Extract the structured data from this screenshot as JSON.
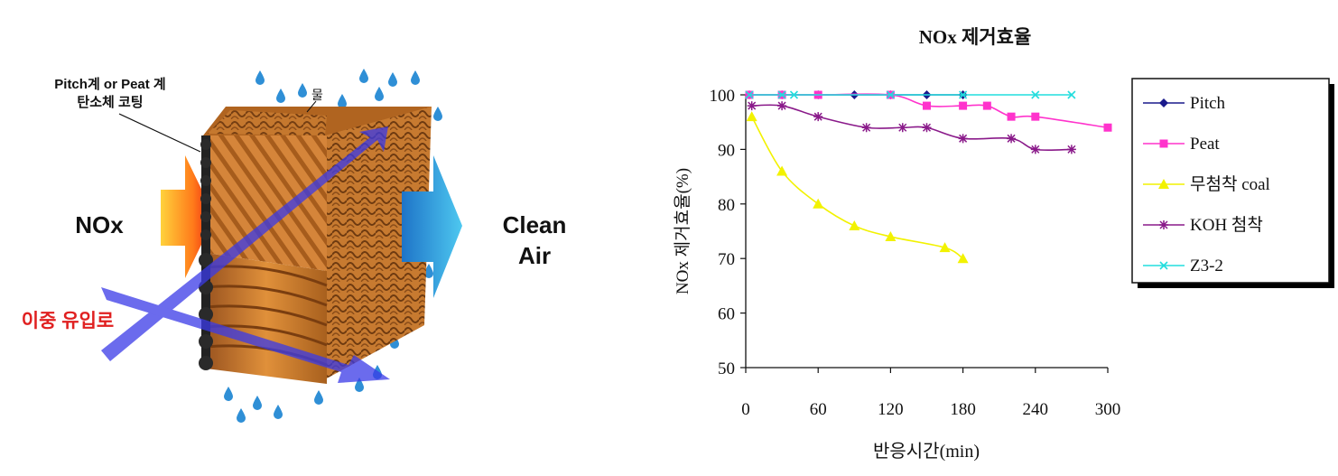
{
  "illustration": {
    "coating_label_line1": "Pitch계 or Peat 계",
    "coating_label_line2": "탄소체 코팅",
    "water_label": "물",
    "inlet_label": "NOx",
    "outlet_label_line1": "Clean",
    "outlet_label_line2": "Air",
    "dual_inlet_label": "이중 유입로",
    "colors": {
      "inlet_arrow": "#f07020",
      "outlet_arrow": "#2a98d8",
      "flow_arrow": "#3a3ae8",
      "media": "#c8782e",
      "droplet": "#2f8fd6",
      "dual_inlet_text": "#e02020"
    }
  },
  "chart_data": {
    "type": "line",
    "title": "NOx 제거효율",
    "xlabel": "반응시간(min)",
    "ylabel": "NOx 제거효율(%)",
    "xlim": [
      0,
      300
    ],
    "ylim": [
      50,
      100
    ],
    "xticks": [
      "0",
      "60",
      "120",
      "180",
      "240",
      "300"
    ],
    "yticks": [
      "50",
      "60",
      "70",
      "80",
      "90",
      "100"
    ],
    "grid": false,
    "legend_position": "right",
    "series": [
      {
        "name": "Pitch",
        "color": "#1a1a8c",
        "marker": "diamond",
        "x": [
          3,
          30,
          60,
          90,
          120,
          150,
          180
        ],
        "y": [
          100,
          100,
          100,
          100,
          100,
          100,
          100
        ]
      },
      {
        "name": "Peat",
        "color": "#ff33cc",
        "marker": "square",
        "x": [
          3,
          30,
          60,
          120,
          150,
          180,
          200,
          220,
          240,
          300
        ],
        "y": [
          100,
          100,
          100,
          100,
          98,
          98,
          98,
          96,
          96,
          94
        ]
      },
      {
        "name": "무첨착 coal",
        "color": "#f2f200",
        "marker": "triangle",
        "x": [
          5,
          30,
          60,
          90,
          120,
          165,
          180
        ],
        "y": [
          96,
          86,
          80,
          76,
          74,
          72,
          70
        ]
      },
      {
        "name": "KOH 첨착",
        "color": "#8a1a8a",
        "marker": "asterisk",
        "x": [
          5,
          30,
          60,
          100,
          130,
          150,
          180,
          220,
          240,
          270
        ],
        "y": [
          98,
          98,
          96,
          94,
          94,
          94,
          92,
          92,
          90,
          90
        ]
      },
      {
        "name": "Z3-2",
        "color": "#22dddd",
        "marker": "x",
        "x": [
          3,
          30,
          40,
          120,
          180,
          240,
          270
        ],
        "y": [
          100,
          100,
          100,
          100,
          100,
          100,
          100
        ]
      }
    ]
  }
}
